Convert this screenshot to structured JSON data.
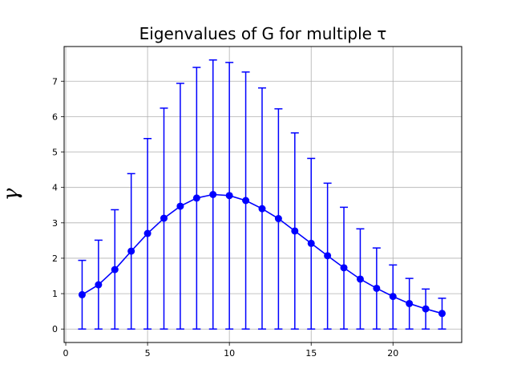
{
  "chart_data": {
    "type": "line",
    "title": "Eigenvalues of G for multiple τ",
    "xlabel": "",
    "ylabel": "γ",
    "xlim": [
      -0.1,
      24.2
    ],
    "ylim": [
      -0.38,
      7.98
    ],
    "xticks": [
      0,
      5,
      10,
      15,
      20
    ],
    "yticks": [
      0,
      1,
      2,
      3,
      4,
      5,
      6,
      7
    ],
    "grid": true,
    "error_bars": true,
    "colors": {
      "series": "#0000ff",
      "grid": "#b0b0b0",
      "axes": "#000000"
    },
    "series": [
      {
        "x": [
          1,
          2,
          3,
          4,
          5,
          6,
          7,
          8,
          9,
          10,
          11,
          12,
          13,
          14,
          15,
          16,
          17,
          18,
          19,
          20,
          21,
          22,
          23
        ],
        "values": [
          0.97,
          1.25,
          1.68,
          2.2,
          2.7,
          3.13,
          3.47,
          3.7,
          3.8,
          3.77,
          3.63,
          3.4,
          3.12,
          2.77,
          2.42,
          2.07,
          1.73,
          1.41,
          1.15,
          0.92,
          0.72,
          0.57,
          0.44
        ],
        "err_low": [
          0,
          0,
          0,
          0,
          0,
          0,
          0,
          0,
          0,
          0,
          0,
          0,
          0,
          0,
          0,
          0,
          0,
          0,
          0,
          0,
          0,
          0,
          0
        ],
        "err_high": [
          1.94,
          2.51,
          3.37,
          4.39,
          5.38,
          6.24,
          6.94,
          7.39,
          7.6,
          7.53,
          7.26,
          6.81,
          6.22,
          5.54,
          4.82,
          4.12,
          3.44,
          2.83,
          2.29,
          1.81,
          1.43,
          1.13,
          0.87
        ]
      }
    ]
  }
}
